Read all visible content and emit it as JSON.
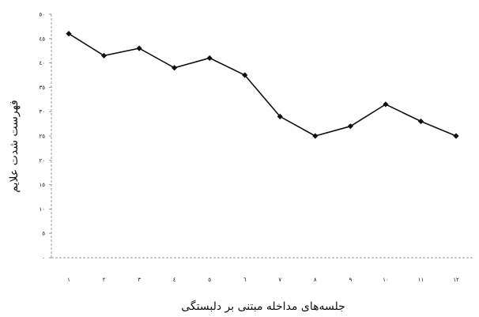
{
  "chart_data": {
    "type": "line",
    "title": "",
    "xlabel": "جلسه‌های مداخله مبتنی بر دلبستگی",
    "ylabel": "فهرست شدت علایم",
    "x_tick_labels": [
      "۱",
      "۲",
      "۳",
      "٤",
      "٥",
      "٦",
      "۷",
      "۸",
      "۹",
      "۱۰",
      "۱۱",
      "۱۲"
    ],
    "y_tick_labels": [
      "۰",
      "٥",
      "۱۰",
      "۱٥",
      "۲۰",
      "۲٥",
      "۳۰",
      "۳٥",
      "٤۰",
      "٤٥",
      "٥۰"
    ],
    "ylim": [
      0,
      50
    ],
    "grid": false,
    "legend": "none",
    "series": [
      {
        "values": [
          46,
          41.5,
          43,
          39,
          41,
          37.5,
          29,
          25,
          27,
          31.5,
          28,
          25
        ]
      }
    ],
    "colors": {
      "line": "#111111",
      "marker": "#111111",
      "axis": "#999999"
    }
  }
}
